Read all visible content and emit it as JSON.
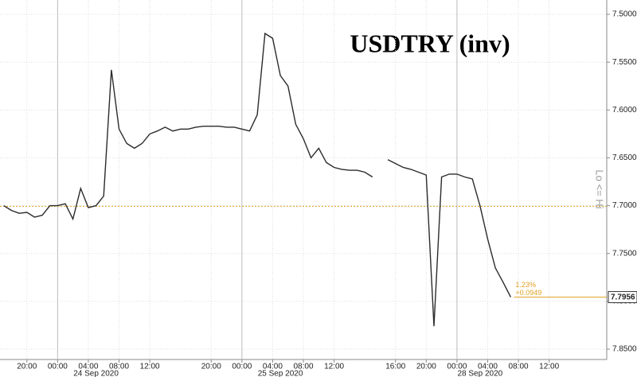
{
  "chart_data": {
    "type": "line",
    "title": "USDTRY (inv)",
    "axis_note": "Lo <= Hi",
    "categories": [
      null,
      null,
      null,
      "20:00",
      null,
      null,
      null,
      "00:00",
      null,
      null,
      null,
      "04:00",
      null,
      null,
      null,
      "08:00",
      null,
      null,
      null,
      "12:00",
      null,
      null,
      null,
      null,
      null,
      null,
      null,
      "20:00",
      null,
      null,
      null,
      "00:00",
      null,
      null,
      null,
      "04:00",
      null,
      null,
      null,
      "08:00",
      null,
      null,
      null,
      "12:00",
      null,
      null,
      null,
      null,
      null,
      null,
      null,
      "16:00",
      null,
      null,
      null,
      "20:00",
      null,
      null,
      null,
      "00:00",
      null,
      null,
      null,
      "04:00",
      null,
      null,
      null,
      "08:00",
      null,
      null,
      null,
      "12:00",
      null,
      null,
      null,
      null,
      null,
      null,
      null
    ],
    "dates": [
      null,
      null,
      null,
      null,
      null,
      null,
      null,
      null,
      null,
      null,
      null,
      null,
      "24 Sep 2020",
      null,
      null,
      null,
      null,
      null,
      null,
      null,
      null,
      null,
      null,
      null,
      null,
      null,
      null,
      null,
      null,
      null,
      null,
      null,
      null,
      null,
      null,
      null,
      "25 Sep 2020",
      null,
      null,
      null,
      null,
      null,
      null,
      null,
      null,
      null,
      null,
      null,
      null,
      null,
      null,
      null,
      null,
      null,
      null,
      null,
      null,
      null,
      null,
      null,
      null,
      null,
      "28 Sep 2020",
      null,
      null,
      null,
      null,
      null,
      null,
      null,
      null,
      null,
      null,
      null,
      null,
      null,
      null,
      null,
      null
    ],
    "series": [
      {
        "name": "USDTRY",
        "color": "#2b2b2b",
        "values": [
          7.7,
          7.705,
          7.708,
          7.707,
          7.712,
          7.71,
          7.7,
          7.7,
          7.698,
          7.714,
          7.682,
          7.702,
          7.7,
          7.69,
          7.558,
          7.62,
          7.635,
          7.64,
          7.635,
          7.625,
          7.622,
          7.618,
          7.622,
          7.62,
          7.62,
          7.618,
          7.617,
          7.617,
          7.617,
          7.618,
          7.618,
          7.62,
          7.622,
          7.605,
          7.52,
          7.525,
          7.564,
          7.575,
          7.615,
          7.63,
          7.65,
          7.64,
          7.655,
          7.66,
          7.662,
          7.663,
          7.663,
          7.665,
          7.67,
          null,
          7.652,
          7.656,
          7.66,
          7.662,
          7.665,
          7.668,
          7.826,
          7.67,
          7.667,
          7.667,
          7.67,
          7.672,
          7.7,
          7.735,
          7.765,
          7.78,
          7.7956,
          null,
          null,
          null,
          null,
          null,
          null,
          null,
          null,
          null,
          null,
          null,
          null
        ]
      }
    ],
    "ylim": [
      7.5,
      7.85
    ],
    "y_inverted": true,
    "yticks": [
      {
        "value": 7.5,
        "label": "7.5000"
      },
      {
        "value": 7.55,
        "label": "7.5500"
      },
      {
        "value": 7.6,
        "label": "7.6000"
      },
      {
        "value": 7.65,
        "label": "7.6500"
      },
      {
        "value": 7.7,
        "label": "7.7000"
      },
      {
        "value": 7.75,
        "label": "7.7500"
      },
      {
        "value": 7.8,
        "label": "7.8000"
      },
      {
        "value": 7.85,
        "label": "7.8500"
      }
    ],
    "reference_line": {
      "value": 7.7007,
      "color": "#e0a020"
    },
    "change_pct": "1.23%",
    "change": "+0.0949",
    "grid": true
  }
}
